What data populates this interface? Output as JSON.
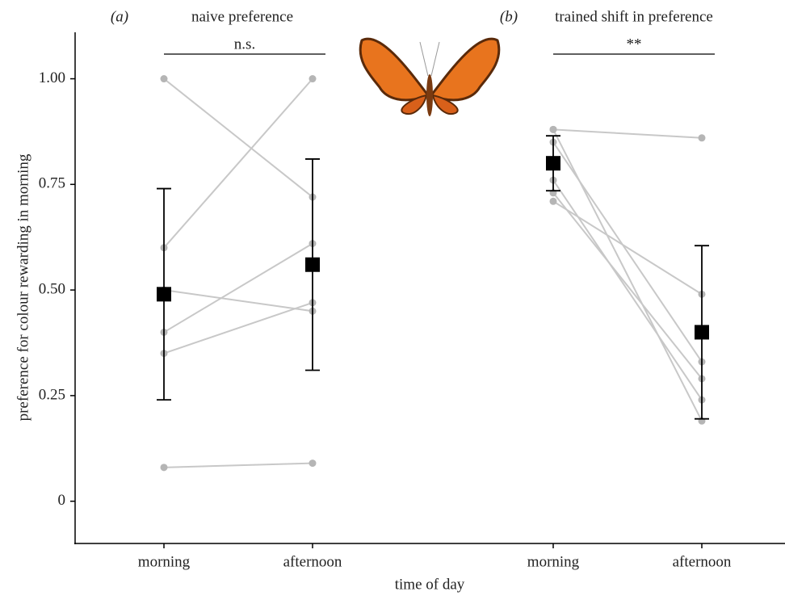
{
  "chart_data": {
    "type": "paired",
    "y_label": "preference for colour rewarding in morning",
    "x_label": "time of day",
    "ylim": [
      -0.1,
      1.11
    ],
    "yticks": [
      0,
      0.25,
      {
        "value": 0.5,
        "label": "0.50"
      },
      0.75,
      {
        "value": 1,
        "label": "1.00"
      }
    ],
    "categories": [
      "morning",
      "afternoon",
      "morning",
      "afternoon"
    ],
    "panels": [
      {
        "label": "(a)",
        "title": "naive preference",
        "significance": "n.s.",
        "individuals": [
          [
            1.0,
            0.72
          ],
          [
            0.6,
            1.0
          ],
          [
            0.5,
            0.45
          ],
          [
            0.4,
            0.61
          ],
          [
            0.35,
            0.47
          ],
          [
            0.08,
            0.09
          ]
        ],
        "means": [
          0.49,
          0.56
        ],
        "errors": [
          0.25,
          0.25
        ]
      },
      {
        "label": "(b)",
        "title": "trained shift in preference",
        "significance": "**",
        "individuals": [
          [
            0.88,
            0.86
          ],
          [
            0.88,
            0.19
          ],
          [
            0.85,
            0.33
          ],
          [
            0.76,
            0.24
          ],
          [
            0.73,
            0.29
          ],
          [
            0.71,
            0.49
          ]
        ],
        "means": [
          0.8,
          0.4
        ],
        "errors": [
          0.065,
          0.205
        ]
      }
    ]
  }
}
